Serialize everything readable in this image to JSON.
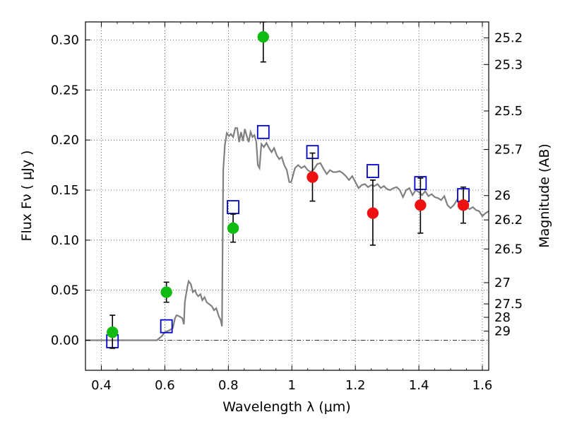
{
  "chart_data": {
    "type": "scatter",
    "xlabel": "Wavelength  λ (μm)",
    "ylabel": "Flux  Fν  ( μJy )",
    "y2label": "Magnitude (AB)",
    "xlim": [
      0.35,
      1.62
    ],
    "ylim": [
      -0.03,
      0.318
    ],
    "grid": true,
    "x_ticks": [
      0.4,
      0.6,
      0.8,
      1.0,
      1.2,
      1.4,
      1.6
    ],
    "x_tick_labels": [
      "0.4",
      "0.6",
      "0.8",
      "1",
      "1.2",
      "1.4",
      "1.6"
    ],
    "y_ticks": [
      0.0,
      0.05,
      0.1,
      0.15,
      0.2,
      0.25,
      0.3
    ],
    "y_tick_labels": [
      "0.00",
      "0.05",
      "0.10",
      "0.15",
      "0.20",
      "0.25",
      "0.30"
    ],
    "y2_ticks": [
      {
        "mag": 25.2,
        "label": "25.2"
      },
      {
        "mag": 25.3,
        "label": "25.3"
      },
      {
        "mag": 25.5,
        "label": "25.5"
      },
      {
        "mag": 25.7,
        "label": "25.7"
      },
      {
        "mag": 26,
        "label": "26"
      },
      {
        "mag": 26.2,
        "label": "26.2"
      },
      {
        "mag": 26.5,
        "label": "26.5"
      },
      {
        "mag": 27,
        "label": "27"
      },
      {
        "mag": 27.5,
        "label": "27.5"
      },
      {
        "mag": 28,
        "label": "28"
      },
      {
        "mag": 29,
        "label": "29"
      }
    ],
    "zero_line": 0.0,
    "series": [
      {
        "kind": "line",
        "color": "#808080",
        "points": [
          [
            0.35,
            0.0
          ],
          [
            0.575,
            0.0
          ],
          [
            0.59,
            0.004
          ],
          [
            0.6,
            0.008
          ],
          [
            0.615,
            0.01
          ],
          [
            0.625,
            0.012
          ],
          [
            0.632,
            0.022
          ],
          [
            0.637,
            0.025
          ],
          [
            0.645,
            0.024
          ],
          [
            0.655,
            0.022
          ],
          [
            0.66,
            0.016
          ],
          [
            0.663,
            0.038
          ],
          [
            0.67,
            0.052
          ],
          [
            0.675,
            0.059
          ],
          [
            0.682,
            0.056
          ],
          [
            0.688,
            0.048
          ],
          [
            0.695,
            0.05
          ],
          [
            0.7,
            0.046
          ],
          [
            0.705,
            0.044
          ],
          [
            0.712,
            0.046
          ],
          [
            0.718,
            0.04
          ],
          [
            0.725,
            0.043
          ],
          [
            0.732,
            0.038
          ],
          [
            0.74,
            0.036
          ],
          [
            0.748,
            0.034
          ],
          [
            0.755,
            0.03
          ],
          [
            0.762,
            0.032
          ],
          [
            0.77,
            0.024
          ],
          [
            0.776,
            0.02
          ],
          [
            0.78,
            0.014
          ],
          [
            0.784,
            0.17
          ],
          [
            0.789,
            0.195
          ],
          [
            0.795,
            0.207
          ],
          [
            0.802,
            0.204
          ],
          [
            0.808,
            0.206
          ],
          [
            0.815,
            0.203
          ],
          [
            0.822,
            0.212
          ],
          [
            0.828,
            0.212
          ],
          [
            0.834,
            0.198
          ],
          [
            0.84,
            0.208
          ],
          [
            0.846,
            0.199
          ],
          [
            0.852,
            0.211
          ],
          [
            0.858,
            0.204
          ],
          [
            0.864,
            0.198
          ],
          [
            0.87,
            0.208
          ],
          [
            0.876,
            0.203
          ],
          [
            0.882,
            0.205
          ],
          [
            0.888,
            0.198
          ],
          [
            0.893,
            0.175
          ],
          [
            0.898,
            0.172
          ],
          [
            0.904,
            0.196
          ],
          [
            0.912,
            0.193
          ],
          [
            0.92,
            0.197
          ],
          [
            0.928,
            0.192
          ],
          [
            0.936,
            0.188
          ],
          [
            0.944,
            0.192
          ],
          [
            0.952,
            0.185
          ],
          [
            0.96,
            0.181
          ],
          [
            0.968,
            0.183
          ],
          [
            0.976,
            0.175
          ],
          [
            0.984,
            0.17
          ],
          [
            0.992,
            0.158
          ],
          [
            0.998,
            0.158
          ],
          [
            1.01,
            0.172
          ],
          [
            1.02,
            0.175
          ],
          [
            1.03,
            0.172
          ],
          [
            1.04,
            0.174
          ],
          [
            1.05,
            0.17
          ],
          [
            1.06,
            0.168
          ],
          [
            1.07,
            0.171
          ],
          [
            1.08,
            0.176
          ],
          [
            1.09,
            0.177
          ],
          [
            1.1,
            0.171
          ],
          [
            1.11,
            0.166
          ],
          [
            1.12,
            0.17
          ],
          [
            1.13,
            0.168
          ],
          [
            1.14,
            0.168
          ],
          [
            1.15,
            0.169
          ],
          [
            1.16,
            0.167
          ],
          [
            1.17,
            0.164
          ],
          [
            1.18,
            0.16
          ],
          [
            1.19,
            0.164
          ],
          [
            1.2,
            0.158
          ],
          [
            1.21,
            0.152
          ],
          [
            1.22,
            0.155
          ],
          [
            1.23,
            0.156
          ],
          [
            1.24,
            0.153
          ],
          [
            1.25,
            0.155
          ],
          [
            1.26,
            0.154
          ],
          [
            1.27,
            0.156
          ],
          [
            1.28,
            0.152
          ],
          [
            1.29,
            0.154
          ],
          [
            1.3,
            0.151
          ],
          [
            1.31,
            0.15
          ],
          [
            1.32,
            0.152
          ],
          [
            1.33,
            0.153
          ],
          [
            1.34,
            0.15
          ],
          [
            1.35,
            0.143
          ],
          [
            1.36,
            0.15
          ],
          [
            1.37,
            0.152
          ],
          [
            1.38,
            0.145
          ],
          [
            1.39,
            0.15
          ],
          [
            1.4,
            0.148
          ],
          [
            1.41,
            0.145
          ],
          [
            1.42,
            0.149
          ],
          [
            1.43,
            0.144
          ],
          [
            1.44,
            0.146
          ],
          [
            1.45,
            0.143
          ],
          [
            1.46,
            0.142
          ],
          [
            1.47,
            0.14
          ],
          [
            1.48,
            0.144
          ],
          [
            1.49,
            0.135
          ],
          [
            1.5,
            0.132
          ],
          [
            1.51,
            0.135
          ],
          [
            1.52,
            0.14
          ],
          [
            1.53,
            0.135
          ],
          [
            1.54,
            0.132
          ],
          [
            1.55,
            0.133
          ],
          [
            1.56,
            0.131
          ],
          [
            1.57,
            0.133
          ],
          [
            1.58,
            0.13
          ],
          [
            1.59,
            0.129
          ],
          [
            1.6,
            0.124
          ],
          [
            1.61,
            0.127
          ],
          [
            1.62,
            0.129
          ]
        ]
      },
      {
        "kind": "squares",
        "color": "#0000cc",
        "points": [
          [
            0.435,
            -0.001
          ],
          [
            0.605,
            0.014
          ],
          [
            0.815,
            0.133
          ],
          [
            0.91,
            0.208
          ],
          [
            1.065,
            0.188
          ],
          [
            1.255,
            0.169
          ],
          [
            1.405,
            0.157
          ],
          [
            1.54,
            0.145
          ]
        ]
      },
      {
        "kind": "circles",
        "color": "#11bb11",
        "points": [
          {
            "x": 0.435,
            "y": 0.008,
            "lo": -0.008,
            "hi": 0.025
          },
          {
            "x": 0.605,
            "y": 0.048,
            "lo": 0.038,
            "hi": 0.058
          },
          {
            "x": 0.815,
            "y": 0.112,
            "lo": 0.098,
            "hi": 0.126
          },
          {
            "x": 0.91,
            "y": 0.303,
            "lo": 0.278,
            "hi": 0.318
          }
        ]
      },
      {
        "kind": "circles",
        "color": "#ee1111",
        "points": [
          {
            "x": 1.065,
            "y": 0.163,
            "lo": 0.139,
            "hi": 0.187
          },
          {
            "x": 1.255,
            "y": 0.127,
            "lo": 0.095,
            "hi": 0.16
          },
          {
            "x": 1.405,
            "y": 0.135,
            "lo": 0.107,
            "hi": 0.162
          },
          {
            "x": 1.54,
            "y": 0.135,
            "lo": 0.117,
            "hi": 0.153
          }
        ]
      }
    ]
  }
}
